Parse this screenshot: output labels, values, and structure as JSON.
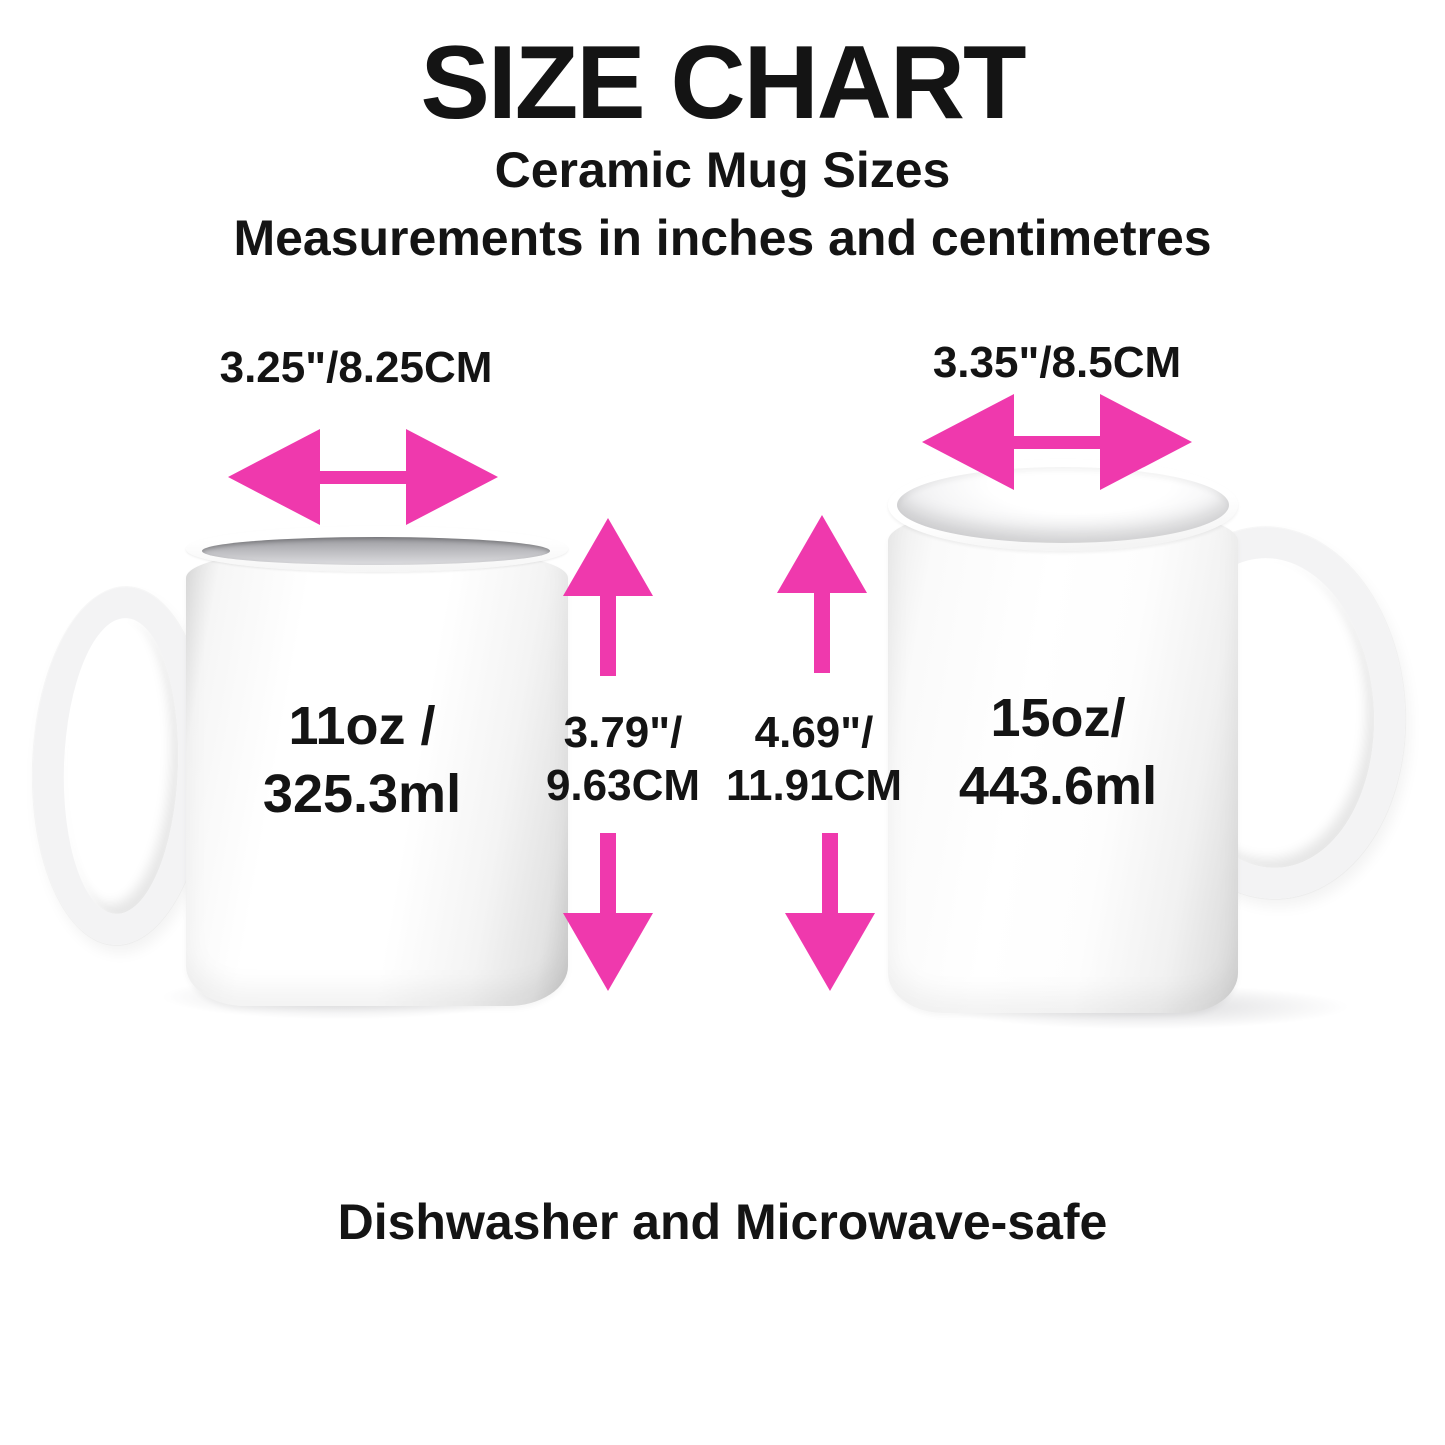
{
  "header": {
    "title": "SIZE CHART",
    "subtitle_product": "Ceramic Mug Sizes",
    "subtitle_units": "Measurements in inches and centimetres"
  },
  "footer": {
    "note": "Dishwasher and Microwave-safe"
  },
  "accent_color": "#EF39AD",
  "text_color": "#141414",
  "mugs": [
    {
      "name": "11oz ceramic mug",
      "handle_side": "left",
      "width_label": "3.25\"/8.25CM",
      "height_label_line1": "3.79\"/",
      "height_label_line2": "9.63CM",
      "volume_line1": "11oz /",
      "volume_line2": "325.3ml"
    },
    {
      "name": "15oz ceramic mug",
      "handle_side": "right",
      "width_label": "3.35\"/8.5CM",
      "height_label_line1": "4.69\"/",
      "height_label_line2": "11.91CM",
      "volume_line1": "15oz/",
      "volume_line2": "443.6ml"
    }
  ]
}
